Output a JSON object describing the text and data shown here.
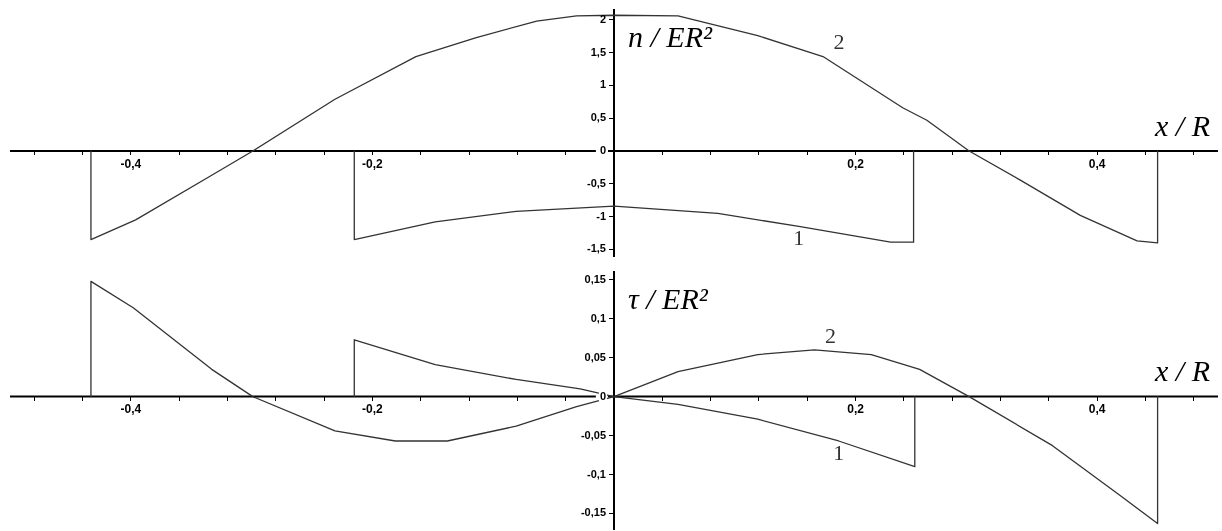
{
  "chart_data": [
    {
      "type": "line",
      "xlabel": "x / R",
      "ylabel": "n / ER²",
      "xlim": [
        -0.5,
        0.5
      ],
      "ylim": [
        -1.6,
        2.15
      ],
      "marker": "none",
      "line_style": "solid",
      "grid": false,
      "legend": false,
      "xticks": [
        {
          "value": -0.48,
          "label": null
        },
        {
          "value": -0.44,
          "label": null
        },
        {
          "value": -0.4,
          "label": "-0,4"
        },
        {
          "value": -0.36,
          "label": null
        },
        {
          "value": -0.32,
          "label": null
        },
        {
          "value": -0.28,
          "label": null
        },
        {
          "value": -0.24,
          "label": null
        },
        {
          "value": -0.2,
          "label": "-0,2"
        },
        {
          "value": -0.16,
          "label": null
        },
        {
          "value": -0.12,
          "label": null
        },
        {
          "value": -0.08,
          "label": null
        },
        {
          "value": -0.04,
          "label": null
        },
        {
          "value": 0.04,
          "label": null
        },
        {
          "value": 0.08,
          "label": null
        },
        {
          "value": 0.12,
          "label": null
        },
        {
          "value": 0.16,
          "label": null
        },
        {
          "value": 0.2,
          "label": "0,2"
        },
        {
          "value": 0.24,
          "label": null
        },
        {
          "value": 0.28,
          "label": null
        },
        {
          "value": 0.32,
          "label": null
        },
        {
          "value": 0.36,
          "label": null
        },
        {
          "value": 0.4,
          "label": "0,4"
        },
        {
          "value": 0.44,
          "label": null
        },
        {
          "value": 0.48,
          "label": null
        }
      ],
      "yticks": [
        {
          "value": -1.5,
          "label": "-1,5"
        },
        {
          "value": -1,
          "label": "-1"
        },
        {
          "value": -0.5,
          "label": "-0,5"
        },
        0,
        {
          "value": 0.5,
          "label": "0,5"
        },
        1,
        {
          "value": 1.5,
          "label": "1,5"
        },
        2
      ],
      "series": [
        {
          "name": "1",
          "color": "#333333",
          "x": [
            -0.215,
            -0.215,
            -0.148,
            -0.081,
            0,
            0.086,
            0.153,
            0.229,
            0.248,
            0.248
          ],
          "values": [
            0,
            -1.35,
            -1.08,
            -0.92,
            -0.84,
            -0.95,
            -1.15,
            -1.39,
            -1.39,
            0
          ]
        },
        {
          "name": "2",
          "color": "#333333",
          "x": [
            -0.433,
            -0.433,
            -0.396,
            -0.333,
            -0.299,
            -0.231,
            -0.164,
            -0.114,
            -0.064,
            -0.031,
            0,
            0.053,
            0.119,
            0.173,
            0.239,
            0.259,
            0.294,
            0.336,
            0.386,
            0.433,
            0.45,
            0.45
          ],
          "values": [
            0,
            -1.35,
            -1.05,
            -0.37,
            0,
            0.79,
            1.44,
            1.73,
            1.98,
            2.06,
            2.07,
            2.06,
            1.76,
            1.44,
            0.66,
            0.47,
            0,
            -0.44,
            -0.98,
            -1.37,
            -1.4,
            0
          ]
        }
      ]
    },
    {
      "type": "line",
      "xlabel": "x / R",
      "ylabel": "τ / ER²",
      "xlim": [
        -0.5,
        0.5
      ],
      "ylim": [
        -0.17,
        0.16
      ],
      "marker": "none",
      "line_style": "solid",
      "grid": false,
      "legend": false,
      "xticks": [
        {
          "value": -0.48,
          "label": null
        },
        {
          "value": -0.44,
          "label": null
        },
        {
          "value": -0.4,
          "label": "-0,4"
        },
        {
          "value": -0.36,
          "label": null
        },
        {
          "value": -0.32,
          "label": null
        },
        {
          "value": -0.28,
          "label": null
        },
        {
          "value": -0.24,
          "label": null
        },
        {
          "value": -0.2,
          "label": "-0,2"
        },
        {
          "value": -0.16,
          "label": null
        },
        {
          "value": -0.12,
          "label": null
        },
        {
          "value": -0.08,
          "label": null
        },
        {
          "value": -0.04,
          "label": null
        },
        {
          "value": 0.04,
          "label": null
        },
        {
          "value": 0.08,
          "label": null
        },
        {
          "value": 0.12,
          "label": null
        },
        {
          "value": 0.16,
          "label": null
        },
        {
          "value": 0.2,
          "label": "0,2"
        },
        {
          "value": 0.24,
          "label": null
        },
        {
          "value": 0.28,
          "label": null
        },
        {
          "value": 0.32,
          "label": null
        },
        {
          "value": 0.36,
          "label": null
        },
        {
          "value": 0.4,
          "label": "0,4"
        },
        {
          "value": 0.44,
          "label": null
        },
        {
          "value": 0.48,
          "label": null
        }
      ],
      "yticks": [
        {
          "value": -0.15,
          "label": "-0,15"
        },
        {
          "value": -0.1,
          "label": "-0,1"
        },
        {
          "value": -0.05,
          "label": "-0,05"
        },
        0,
        {
          "value": 0.05,
          "label": "0,05"
        },
        {
          "value": 0.1,
          "label": "0,1"
        },
        {
          "value": 0.15,
          "label": "0,15"
        }
      ],
      "series": [
        {
          "name": "1",
          "color": "#333333",
          "x": [
            -0.215,
            -0.215,
            -0.148,
            -0.081,
            -0.028,
            0,
            0.053,
            0.119,
            0.186,
            0.249,
            0.249
          ],
          "values": [
            0,
            0.073,
            0.041,
            0.022,
            0.01,
            0,
            -0.01,
            -0.029,
            -0.057,
            -0.09,
            0
          ]
        },
        {
          "name": "2",
          "color": "#333333",
          "x": [
            -0.433,
            -0.433,
            -0.398,
            -0.333,
            -0.299,
            -0.231,
            -0.181,
            -0.138,
            -0.081,
            -0.031,
            0,
            0.053,
            0.119,
            0.166,
            0.213,
            0.253,
            0.294,
            0.363,
            0.419,
            0.45,
            0.45
          ],
          "values": [
            0,
            0.148,
            0.114,
            0.035,
            0,
            -0.044,
            -0.057,
            -0.057,
            -0.038,
            -0.013,
            0,
            0.032,
            0.054,
            0.06,
            0.054,
            0.035,
            0,
            -0.063,
            -0.127,
            -0.163,
            0
          ]
        }
      ]
    }
  ]
}
